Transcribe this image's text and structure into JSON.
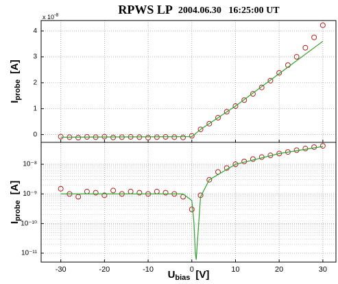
{
  "chart_data": [
    {
      "type": "scatter",
      "title": "RPWS LP",
      "subtitle": "2004.06.30   16:25:00 UT",
      "y_multiplier": "x 10",
      "y_multiplier_exp": "-8",
      "ylabel": "I",
      "ylabel_sub": "probe",
      "ylabel_unit": "[A]",
      "xlim": [
        -34.5,
        33
      ],
      "ylim": [
        -0.3,
        4.4
      ],
      "yticks": [
        0,
        1,
        2,
        3,
        4
      ],
      "grid": true,
      "log_y": false,
      "series": [
        {
          "kind": "markers",
          "color": "#b0201c",
          "x": [
            -30,
            -28,
            -26,
            -24,
            -22,
            -20,
            -18,
            -16,
            -14,
            -12,
            -10,
            -8,
            -6,
            -4,
            -2,
            0,
            2,
            4,
            6,
            8,
            10,
            12,
            14,
            16,
            18,
            20,
            22,
            24,
            26,
            28,
            30
          ],
          "values": [
            -0.08,
            -0.1,
            -0.12,
            -0.09,
            -0.1,
            -0.08,
            -0.11,
            -0.1,
            -0.09,
            -0.1,
            -0.12,
            -0.1,
            -0.09,
            -0.1,
            -0.11,
            -0.05,
            0.2,
            0.42,
            0.65,
            0.88,
            1.1,
            1.33,
            1.57,
            1.82,
            2.08,
            2.38,
            2.68,
            3.0,
            3.35,
            3.75,
            4.22
          ]
        },
        {
          "kind": "line",
          "color": "#2ea02e",
          "x": [
            -30,
            0,
            2,
            10,
            20,
            30
          ],
          "values": [
            -0.1,
            -0.08,
            0.2,
            1.1,
            2.35,
            3.6
          ]
        }
      ]
    },
    {
      "type": "scatter",
      "ylabel": "I",
      "ylabel_sub": "probe",
      "ylabel_unit": "[A]",
      "xlabel": "U",
      "xlabel_sub": "bias",
      "xlabel_unit": "[V]",
      "xlim": [
        -34.5,
        33
      ],
      "xticks": [
        -30,
        -20,
        -10,
        0,
        10,
        20,
        30
      ],
      "ylim": [
        5e-12,
        5.5e-08
      ],
      "log_y": true,
      "grid": true,
      "yticks": [
        {
          "value": 1e-11,
          "label": "10⁻¹¹"
        },
        {
          "value": 1e-10,
          "label": "10⁻¹⁰"
        },
        {
          "value": 1e-09,
          "label": "10⁻⁹"
        },
        {
          "value": 1e-08,
          "label": "10⁻⁸"
        }
      ],
      "series": [
        {
          "kind": "markers",
          "color": "#b0201c",
          "x": [
            -30,
            -28,
            -26,
            -24,
            -22,
            -20,
            -18,
            -16,
            -14,
            -12,
            -10,
            -8,
            -6,
            -4,
            -2,
            0,
            2,
            4,
            6,
            8,
            10,
            12,
            14,
            16,
            18,
            20,
            22,
            24,
            26,
            28,
            30
          ],
          "values": [
            1.5e-09,
            1e-09,
            8e-10,
            1.2e-09,
            1.1e-09,
            9e-10,
            1.3e-09,
            1e-09,
            1.2e-09,
            1.1e-09,
            1e-09,
            1.2e-09,
            1.1e-09,
            1e-09,
            8e-10,
            3e-10,
            9e-10,
            3e-09,
            5.5e-09,
            7.5e-09,
            1e-08,
            1.25e-08,
            1.5e-08,
            1.75e-08,
            2e-08,
            2.3e-08,
            2.6e-08,
            3e-08,
            3.4e-08,
            3.8e-08,
            4.2e-08
          ]
        },
        {
          "kind": "line",
          "color": "#2ea02e",
          "x": [
            -30,
            -2,
            0,
            0.5,
            0.8,
            1,
            2,
            4,
            10,
            20,
            30
          ],
          "values": [
            1e-09,
            1e-09,
            6e-10,
            1e-10,
            1e-11,
            6e-12,
            8e-10,
            3e-09,
            1e-08,
            2.3e-08,
            4e-08
          ]
        }
      ]
    }
  ]
}
